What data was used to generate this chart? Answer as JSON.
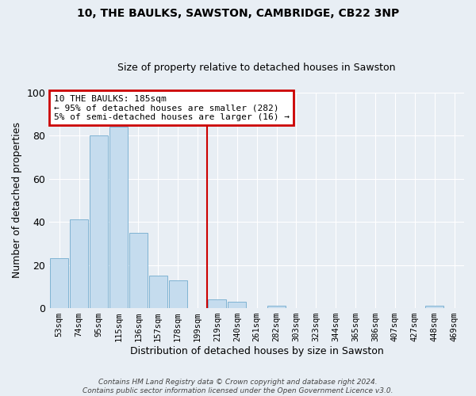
{
  "title": "10, THE BAULKS, SAWSTON, CAMBRIDGE, CB22 3NP",
  "subtitle": "Size of property relative to detached houses in Sawston",
  "xlabel": "Distribution of detached houses by size in Sawston",
  "ylabel": "Number of detached properties",
  "bar_labels": [
    "53sqm",
    "74sqm",
    "95sqm",
    "115sqm",
    "136sqm",
    "157sqm",
    "178sqm",
    "199sqm",
    "219sqm",
    "240sqm",
    "261sqm",
    "282sqm",
    "303sqm",
    "323sqm",
    "344sqm",
    "365sqm",
    "386sqm",
    "407sqm",
    "427sqm",
    "448sqm",
    "469sqm"
  ],
  "bar_values": [
    23,
    41,
    80,
    84,
    35,
    15,
    13,
    0,
    4,
    3,
    0,
    1,
    0,
    0,
    0,
    0,
    0,
    0,
    0,
    1,
    0
  ],
  "bar_color": "#c5dcee",
  "bar_edge_color": "#7fb3d3",
  "vline_x": 7.5,
  "vline_color": "#cc0000",
  "annotation_line1": "10 THE BAULKS: 185sqm",
  "annotation_line2": "← 95% of detached houses are smaller (282)",
  "annotation_line3": "5% of semi-detached houses are larger (16) →",
  "annotation_box_color": "#cc0000",
  "ylim": [
    0,
    100
  ],
  "yticks": [
    0,
    20,
    40,
    60,
    80,
    100
  ],
  "footer_text": "Contains HM Land Registry data © Crown copyright and database right 2024.\nContains public sector information licensed under the Open Government Licence v3.0.",
  "background_color": "#e8eef4",
  "plot_background": "#e8eef4",
  "grid_color": "#ffffff",
  "title_fontsize": 10,
  "subtitle_fontsize": 9
}
